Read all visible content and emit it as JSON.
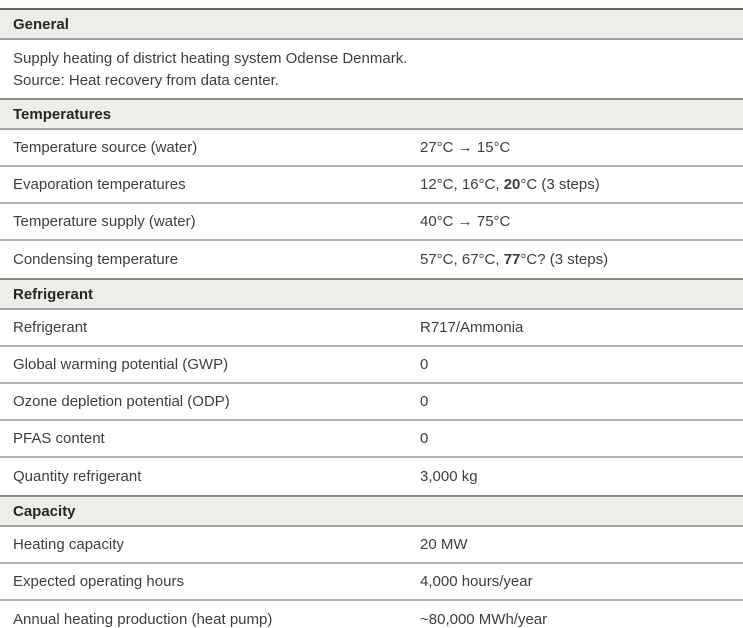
{
  "table": {
    "sections": [
      {
        "title": "General",
        "description_line1": "Supply heating of district heating system Odense Denmark.",
        "description_line2": "Source: Heat recovery from data center."
      },
      {
        "title": "Temperatures",
        "rows": [
          {
            "label": "Temperature source (water)",
            "value_prefix": "27°C → 15°C",
            "value_bold": "",
            "value_suffix": ""
          },
          {
            "label": "Evaporation temperatures",
            "value_prefix": "12°C, 16°C, ",
            "value_bold": "20",
            "value_suffix": "°C (3 steps)"
          },
          {
            "label": "Temperature supply (water)",
            "value_prefix": "40°C → 75°C",
            "value_bold": "",
            "value_suffix": ""
          },
          {
            "label": "Condensing temperature",
            "value_prefix": "57°C, 67°C, ",
            "value_bold": "77",
            "value_suffix": "°C? (3 steps)"
          }
        ]
      },
      {
        "title": "Refrigerant",
        "rows": [
          {
            "label": "Refrigerant",
            "value_prefix": "R717/Ammonia",
            "value_bold": "",
            "value_suffix": ""
          },
          {
            "label": "Global warming potential (GWP)",
            "value_prefix": "0",
            "value_bold": "",
            "value_suffix": ""
          },
          {
            "label": "Ozone depletion potential (ODP)",
            "value_prefix": "0",
            "value_bold": "",
            "value_suffix": ""
          },
          {
            "label": "PFAS content",
            "value_prefix": "0",
            "value_bold": "",
            "value_suffix": ""
          },
          {
            "label": "Quantity refrigerant",
            "value_prefix": "3,000 kg",
            "value_bold": "",
            "value_suffix": ""
          }
        ]
      },
      {
        "title": "Capacity",
        "rows": [
          {
            "label": "Heating capacity",
            "value_prefix": "20 MW",
            "value_bold": "",
            "value_suffix": ""
          },
          {
            "label": "Expected operating hours",
            "value_prefix": "4,000 hours/year",
            "value_bold": "",
            "value_suffix": ""
          },
          {
            "label": "Annual heating production (heat pump)",
            "value_prefix": "~80,000 MWh/year",
            "value_bold": "",
            "value_suffix": ""
          }
        ]
      }
    ],
    "colors": {
      "header_background": "#eeedea",
      "top_border": "#6d655d",
      "section_border": "#8f8981",
      "row_separator": "#b7b2ad",
      "text": "#3e3e3e"
    }
  }
}
